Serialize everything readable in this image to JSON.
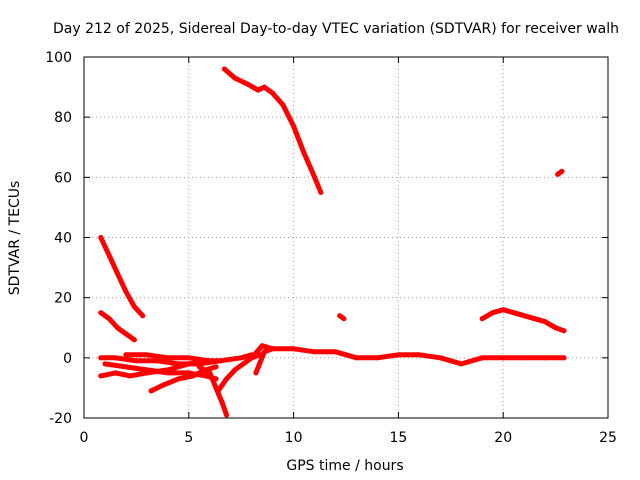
{
  "chart_data": {
    "type": "line",
    "title": "Day 212 of 2025, Sidereal Day-to-day VTEC variation (SDTVAR) for receiver walh",
    "xlabel": "GPS time / hours",
    "ylabel": "SDTVAR / TECUs",
    "xlim": [
      0,
      25
    ],
    "ylim": [
      -20,
      100
    ],
    "xticks": [
      0,
      5,
      10,
      15,
      20,
      25
    ],
    "yticks": [
      -20,
      0,
      20,
      40,
      60,
      80,
      100
    ],
    "xtick_labels": [
      "0",
      "5",
      "10",
      "15",
      "20",
      "25"
    ],
    "ytick_labels": [
      "-20",
      "0",
      "20",
      "40",
      "60",
      "80",
      "100"
    ],
    "grid": true,
    "legend": "none",
    "color": "#ff0000",
    "series": [
      {
        "name": "track-1",
        "x": [
          6.7,
          7.2,
          7.8,
          8.3,
          8.6,
          9.0,
          9.5,
          10.0,
          10.5,
          11.0,
          11.3
        ],
        "y": [
          96,
          93,
          91,
          89,
          90,
          88,
          84,
          77,
          68,
          60,
          55
        ]
      },
      {
        "name": "track-2",
        "x": [
          0.8,
          1.2,
          1.6,
          2.0,
          2.4,
          2.8
        ],
        "y": [
          40,
          34,
          28,
          22,
          17,
          14
        ]
      },
      {
        "name": "track-3",
        "x": [
          0.8,
          1.2,
          1.6,
          2.0,
          2.4
        ],
        "y": [
          15,
          13,
          10,
          8,
          6
        ]
      },
      {
        "name": "track-4",
        "x": [
          22.6,
          22.8
        ],
        "y": [
          61,
          62
        ]
      },
      {
        "name": "track-5",
        "x": [
          12.2,
          12.4
        ],
        "y": [
          14,
          13
        ]
      },
      {
        "name": "track-6",
        "x": [
          19.0,
          19.5,
          20.0,
          20.5,
          21.0,
          21.5,
          22.0,
          22.5,
          22.9
        ],
        "y": [
          13,
          15,
          16,
          15,
          14,
          13,
          12,
          10,
          9
        ]
      },
      {
        "name": "track-7",
        "x": [
          8.0,
          8.5,
          9.0,
          10.0,
          11.0,
          12.0,
          13.0,
          14.0,
          15.0,
          16.0,
          17.0,
          18.0,
          19.0,
          20.0,
          21.0,
          22.0,
          22.9
        ],
        "y": [
          0,
          4,
          3,
          3,
          2,
          2,
          0,
          0,
          1,
          1,
          0,
          -2,
          0,
          0,
          0,
          0,
          0
        ]
      },
      {
        "name": "track-8",
        "x": [
          0.8,
          1.5,
          2.5,
          3.5,
          4.5,
          5.5,
          6.5,
          7.5,
          8.0
        ],
        "y": [
          0,
          0,
          -1,
          -1,
          -2,
          -2,
          -1,
          0,
          1
        ]
      },
      {
        "name": "track-9",
        "x": [
          0.8,
          1.5,
          2.2,
          3.0,
          4.0,
          5.0,
          5.8
        ],
        "y": [
          -6,
          -5,
          -6,
          -5,
          -4,
          -2,
          -1
        ]
      },
      {
        "name": "track-10",
        "x": [
          1.0,
          2.0,
          3.0,
          4.0,
          5.0,
          5.8,
          6.3
        ],
        "y": [
          -2,
          -3,
          -4,
          -5,
          -5,
          -6,
          -7
        ]
      },
      {
        "name": "track-11",
        "x": [
          3.2,
          3.8,
          4.5,
          5.2,
          5.8,
          6.3
        ],
        "y": [
          -11,
          -9,
          -7,
          -6,
          -4,
          -3
        ]
      },
      {
        "name": "track-12",
        "x": [
          2.0,
          3.0,
          4.0,
          5.0,
          6.0,
          6.4
        ],
        "y": [
          1,
          1,
          0,
          0,
          -1,
          -1
        ]
      },
      {
        "name": "track-13",
        "x": [
          5.5,
          6.0,
          6.3,
          6.6,
          6.8
        ],
        "y": [
          -3,
          -5,
          -10,
          -15,
          -19
        ]
      },
      {
        "name": "track-14",
        "x": [
          6.4,
          6.8,
          7.2,
          7.6,
          8.0,
          8.4
        ],
        "y": [
          -11,
          -7,
          -4,
          -2,
          0,
          1
        ]
      },
      {
        "name": "track-15",
        "x": [
          8.2,
          8.6,
          9.0
        ],
        "y": [
          -5,
          2,
          3
        ]
      }
    ]
  }
}
